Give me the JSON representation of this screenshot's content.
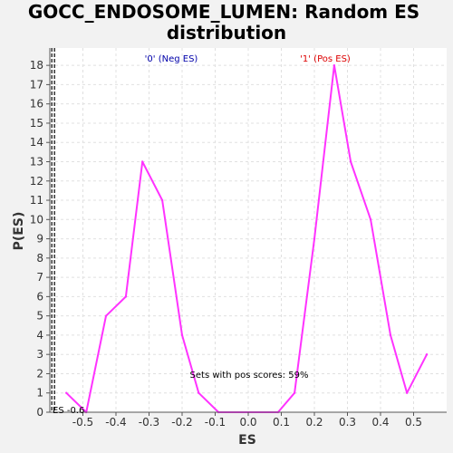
{
  "chart_data": {
    "type": "line",
    "title_line1": "GOCC_ENDOSOME_LUMEN: Random ES",
    "title_line2": "distribution",
    "xlabel": "ES",
    "ylabel": "P(ES)",
    "xlim": [
      -0.6,
      0.6
    ],
    "ylim": [
      0,
      18.9
    ],
    "x_ticks": [
      "-0.5",
      "-0.4",
      "-0.3",
      "-0.2",
      "-0.1",
      "0.0",
      "0.1",
      "0.2",
      "0.3",
      "0.4",
      "0.5"
    ],
    "y_ticks": [
      "0",
      "1",
      "2",
      "3",
      "4",
      "5",
      "6",
      "7",
      "8",
      "9",
      "10",
      "11",
      "12",
      "13",
      "14",
      "15",
      "16",
      "17",
      "18"
    ],
    "grid": true,
    "series": [
      {
        "color": "#ff33ff",
        "x": [
          -0.55,
          -0.49,
          -0.43,
          -0.37,
          -0.32,
          -0.26,
          -0.2,
          -0.15,
          -0.09,
          0.09,
          0.14,
          0.2,
          0.26,
          0.31,
          0.37,
          0.43,
          0.48,
          0.54
        ],
        "y": [
          1,
          0,
          5,
          6,
          13,
          11,
          4,
          1,
          0,
          0,
          1,
          9,
          18,
          13,
          10,
          4,
          1,
          3
        ]
      }
    ],
    "actual_es": {
      "label": "ES -0.6",
      "value": -0.59
    },
    "annotations": {
      "neg_label": "'0' (Neg ES)",
      "neg_color": "#0000aa",
      "pos_label": "'1' (Pos ES)",
      "pos_color": "#dd0000",
      "pos_scores": "Sets with pos scores: 59%"
    }
  }
}
